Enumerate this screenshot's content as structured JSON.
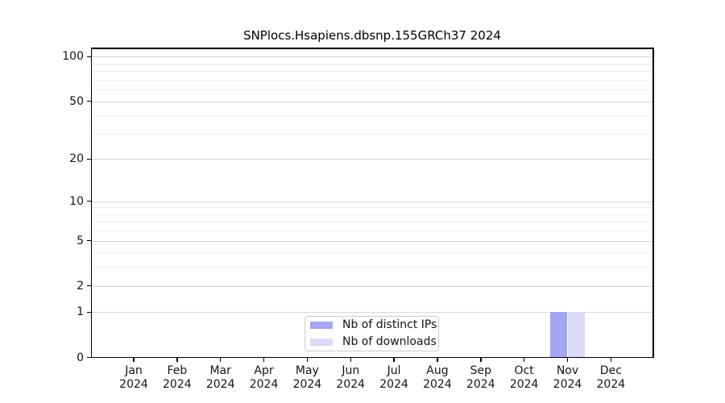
{
  "chart_data": {
    "type": "bar",
    "title": "SNPlocs.Hsapiens.dbsnp.155GRCh37 2024",
    "categories": [
      "Jan",
      "Feb",
      "Mar",
      "Apr",
      "May",
      "Jun",
      "Jul",
      "Aug",
      "Sep",
      "Oct",
      "Nov",
      "Dec"
    ],
    "x_tick_year": "2024",
    "series": [
      {
        "name": "Nb of distinct IPs",
        "color": "#a5a5f6",
        "values": [
          0,
          0,
          0,
          0,
          0,
          0,
          0,
          0,
          0,
          0,
          1,
          0
        ]
      },
      {
        "name": "Nb of downloads",
        "color": "#d9d9f8",
        "values": [
          0,
          0,
          0,
          0,
          0,
          0,
          0,
          0,
          0,
          0,
          1,
          0
        ]
      }
    ],
    "y_scale": "log1p",
    "y_ticks_major": [
      0,
      1,
      2,
      5,
      10,
      20,
      50,
      100
    ],
    "y_ticks_minor": [
      3,
      4,
      6,
      7,
      8,
      9,
      30,
      40,
      60,
      70,
      80,
      90
    ],
    "ylim": [
      0,
      114
    ],
    "xlabel": "",
    "ylabel": "",
    "grid": "horizontal",
    "legend_position": "lower-center"
  },
  "colors": {
    "grid_major": "#d6d6d6",
    "grid_minor": "#efefef",
    "spine": "#000000",
    "text": "#151515"
  }
}
